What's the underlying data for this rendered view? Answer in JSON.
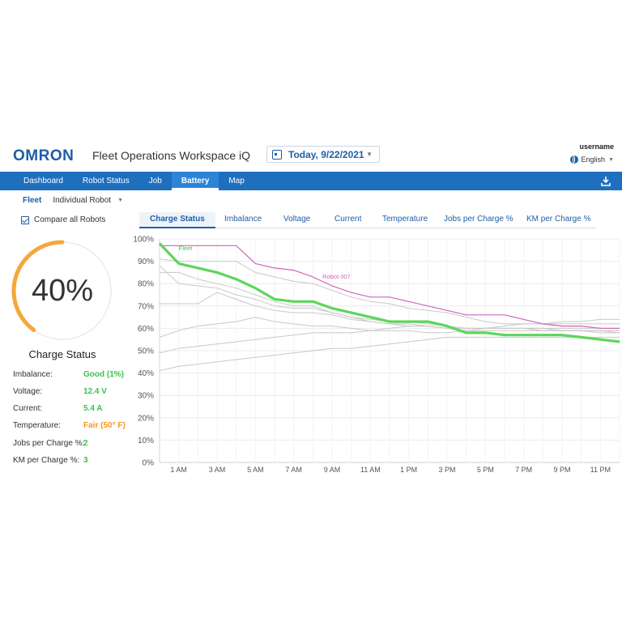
{
  "header": {
    "logo": "OMRON",
    "app_title": "Fleet Operations Workspace iQ",
    "date": "Today, 9/22/2021",
    "username": "username",
    "language": "English"
  },
  "nav": {
    "items": [
      {
        "label": "Dashboard",
        "active": false
      },
      {
        "label": "Robot Status",
        "active": false
      },
      {
        "label": "Job",
        "active": false
      },
      {
        "label": "Battery",
        "active": true
      },
      {
        "label": "Map",
        "active": false
      }
    ]
  },
  "subnav": {
    "fleet": "Fleet",
    "individual": "Individual Robot"
  },
  "compare_label": "Compare all Robots",
  "tabs": [
    "Charge Status",
    "Imbalance",
    "Voltage",
    "Current",
    "Temperature",
    "Jobs per Charge %",
    "KM per Charge %"
  ],
  "gauge": {
    "value_text": "40%",
    "fraction": 0.4,
    "color": "#f4a83a",
    "track_color": "#e6e6e6"
  },
  "charge_status_title": "Charge Status",
  "metrics": [
    {
      "label": "Imbalance:",
      "value": "Good (1%)",
      "color": "#3fbf4f"
    },
    {
      "label": "Voltage:",
      "value": "12.4 V",
      "color": "#3fbf4f"
    },
    {
      "label": "Current:",
      "value": "5.4 A",
      "color": "#3fbf4f"
    },
    {
      "label": "Temperature:",
      "value": "Fair (50° F)",
      "color": "#f09a1a"
    },
    {
      "label": "Jobs per Charge %:",
      "value": "2",
      "color": "#3fbf4f"
    },
    {
      "label": "KM per Charge %:",
      "value": "3",
      "color": "#3fbf4f"
    }
  ],
  "colors": {
    "brand": "#1f5ea8",
    "nav_bg": "#1f6fbf",
    "fleet_line": "#5cd65c",
    "robot_line": "#cc66bb",
    "other_lines": "#c8c8c8"
  },
  "chart_data": {
    "type": "line",
    "y_ticks": [
      "0%",
      "10%",
      "20%",
      "30%",
      "40%",
      "50%",
      "60%",
      "70%",
      "80%",
      "90%",
      "100%"
    ],
    "ylim": [
      0,
      100
    ],
    "x": [
      "12 AM",
      "1 AM",
      "2 AM",
      "3 AM",
      "4 AM",
      "5 AM",
      "6 AM",
      "7 AM",
      "8 AM",
      "9 AM",
      "10 AM",
      "11 AM",
      "12 PM",
      "1 PM",
      "2 PM",
      "3 PM",
      "4 PM",
      "5 PM",
      "6 PM",
      "7 PM",
      "8 PM",
      "9 PM",
      "10 PM",
      "11 PM",
      "12 AM"
    ],
    "x_tick_labels": [
      "1 AM",
      "3 AM",
      "5 AM",
      "7 AM",
      "9 AM",
      "11 AM",
      "1 PM",
      "3 PM",
      "5 PM",
      "7 PM",
      "9 PM",
      "11 PM"
    ],
    "grid": true,
    "series": [
      {
        "name": "Fleet",
        "role": "fleet",
        "values": [
          98,
          89,
          87,
          85,
          82,
          78,
          73,
          72,
          72,
          69,
          67,
          65,
          63,
          63,
          63,
          61,
          58,
          58,
          57,
          57,
          57,
          57,
          56,
          55,
          54
        ]
      },
      {
        "name": "Robot 007",
        "role": "robot",
        "values": [
          97,
          97,
          97,
          97,
          97,
          89,
          87,
          86,
          83,
          79,
          76,
          74,
          74,
          72,
          70,
          68,
          66,
          66,
          66,
          64,
          62,
          61,
          61,
          60,
          60
        ]
      },
      {
        "role": "other",
        "values": [
          91,
          90,
          90,
          90,
          90,
          85,
          83,
          81,
          80,
          77,
          74,
          72,
          71,
          69,
          68,
          67,
          65,
          63,
          62,
          62,
          62,
          62,
          62,
          62,
          62
        ]
      },
      {
        "role": "other",
        "values": [
          88,
          80,
          79,
          78,
          75,
          73,
          70,
          69,
          69,
          67,
          65,
          63,
          62,
          61,
          61,
          60,
          59,
          59,
          59,
          59,
          59,
          59,
          59,
          59,
          59
        ]
      },
      {
        "role": "other",
        "values": [
          85,
          85,
          82,
          80,
          78,
          75,
          72,
          70,
          70,
          67,
          65,
          64,
          63,
          63,
          62,
          61,
          60,
          60,
          60,
          60,
          59,
          59,
          59,
          58,
          58
        ]
      },
      {
        "role": "other",
        "values": [
          71,
          71,
          71,
          76,
          73,
          70,
          68,
          67,
          67,
          66,
          64,
          63,
          62,
          62,
          61,
          60,
          60,
          60,
          60,
          60,
          60,
          60,
          60,
          60,
          60
        ]
      },
      {
        "role": "other",
        "values": [
          56,
          59,
          61,
          62,
          63,
          65,
          63,
          62,
          61,
          61,
          60,
          59,
          59,
          59,
          58,
          58,
          59,
          60,
          61,
          62,
          62,
          63,
          63,
          64,
          64
        ]
      },
      {
        "role": "other",
        "values": [
          49,
          51,
          52,
          53,
          54,
          55,
          56,
          57,
          58,
          58,
          58,
          59,
          60,
          61,
          61,
          60,
          60,
          60,
          60,
          60,
          60,
          59,
          59,
          59,
          58
        ]
      },
      {
        "role": "other",
        "values": [
          41,
          43,
          44,
          45,
          46,
          47,
          48,
          49,
          50,
          51,
          51,
          52,
          53,
          54,
          55,
          56,
          56,
          56,
          56,
          56,
          56,
          56,
          56,
          56,
          56
        ]
      }
    ]
  }
}
